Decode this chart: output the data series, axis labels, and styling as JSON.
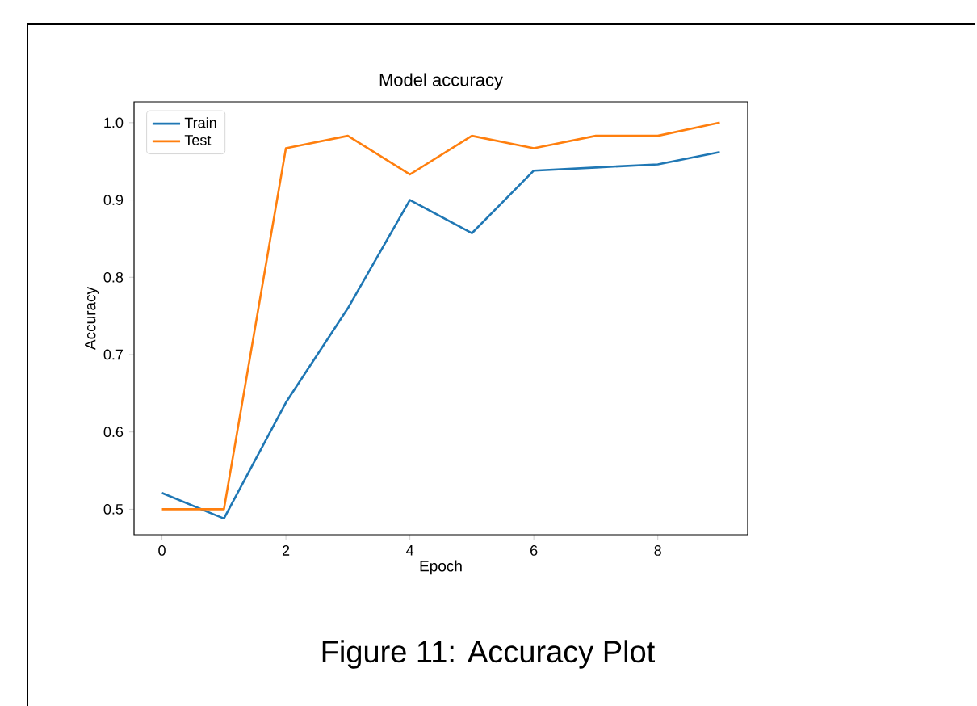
{
  "chart_data": {
    "type": "line",
    "title": "Model accuracy",
    "xlabel": "Epoch",
    "ylabel": "Accuracy",
    "x": [
      0,
      1,
      2,
      3,
      4,
      5,
      6,
      7,
      8,
      9
    ],
    "series": [
      {
        "name": "Train",
        "color": "#1f77b4",
        "values": [
          0.521,
          0.488,
          0.638,
          0.76,
          0.9,
          0.857,
          0.938,
          0.942,
          0.946,
          0.962
        ]
      },
      {
        "name": "Test",
        "color": "#ff7f0e",
        "values": [
          0.5,
          0.5,
          0.967,
          0.983,
          0.933,
          0.983,
          0.967,
          0.983,
          0.983,
          1.0
        ]
      }
    ],
    "xlim": [
      -0.45,
      9.45
    ],
    "ylim": [
      0.467,
      1.027
    ],
    "xticks": [
      0,
      2,
      4,
      6,
      8
    ],
    "yticks": [
      0.5,
      0.6,
      0.7,
      0.8,
      0.9,
      {
        "value": 1.0,
        "label": "1.0"
      }
    ],
    "legend": "top left",
    "grid": false,
    "marker": "none",
    "line_style": "solid",
    "annotations": [
      "Figure 11: Accuracy Plot"
    ]
  }
}
